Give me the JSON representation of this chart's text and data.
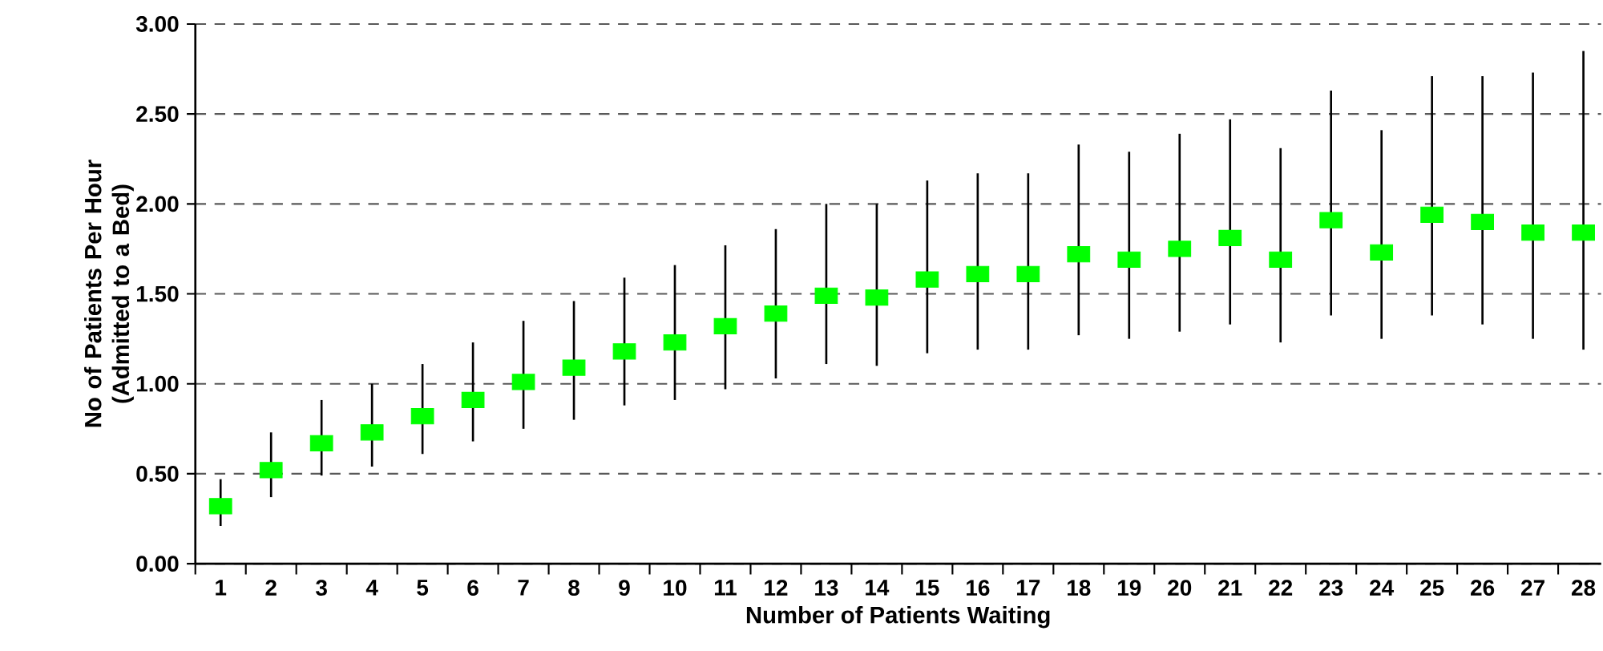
{
  "chart_data": {
    "type": "scatter",
    "xlabel": "Number of Patients Waiting",
    "ylabel": "No of Patients Per Hour (Admitted to a Bed)",
    "categories": [
      "1",
      "2",
      "3",
      "4",
      "5",
      "6",
      "7",
      "8",
      "9",
      "10",
      "11",
      "12",
      "13",
      "14",
      "15",
      "16",
      "17",
      "18",
      "19",
      "20",
      "21",
      "22",
      "23",
      "24",
      "25",
      "26",
      "27",
      "28"
    ],
    "values": [
      0.32,
      0.52,
      0.67,
      0.73,
      0.82,
      0.91,
      1.01,
      1.09,
      1.18,
      1.23,
      1.32,
      1.39,
      1.49,
      1.48,
      1.58,
      1.61,
      1.61,
      1.72,
      1.69,
      1.75,
      1.81,
      1.69,
      1.91,
      1.73,
      1.94,
      1.9,
      1.84,
      1.84
    ],
    "errors": [
      [
        0.21,
        0.47
      ],
      [
        0.37,
        0.73
      ],
      [
        0.49,
        0.91
      ],
      [
        0.54,
        1.0
      ],
      [
        0.61,
        1.11
      ],
      [
        0.68,
        1.23
      ],
      [
        0.75,
        1.35
      ],
      [
        0.8,
        1.46
      ],
      [
        0.88,
        1.59
      ],
      [
        0.91,
        1.66
      ],
      [
        0.97,
        1.77
      ],
      [
        1.03,
        1.86
      ],
      [
        1.11,
        2.0
      ],
      [
        1.1,
        2.0
      ],
      [
        1.17,
        2.13
      ],
      [
        1.19,
        2.17
      ],
      [
        1.19,
        2.17
      ],
      [
        1.27,
        2.33
      ],
      [
        1.25,
        2.29
      ],
      [
        1.29,
        2.39
      ],
      [
        1.33,
        2.47
      ],
      [
        1.23,
        2.31
      ],
      [
        1.38,
        2.63
      ],
      [
        1.25,
        2.41
      ],
      [
        1.38,
        2.71
      ],
      [
        1.33,
        2.71
      ],
      [
        1.25,
        2.73
      ],
      [
        1.19,
        2.85
      ]
    ],
    "color": "#00ff00",
    "marker": "square",
    "grid": "y",
    "ylim": [
      0,
      3
    ],
    "yticks": [
      {
        "value": 0,
        "label": "0.00"
      },
      {
        "value": 0.5,
        "label": "0.50"
      },
      {
        "value": 1,
        "label": "1.00"
      },
      {
        "value": 1.5,
        "label": "1.50"
      },
      {
        "value": 2,
        "label": "2.00"
      },
      {
        "value": 2.5,
        "label": "2.50"
      },
      {
        "value": 3,
        "label": "3.00"
      }
    ]
  }
}
